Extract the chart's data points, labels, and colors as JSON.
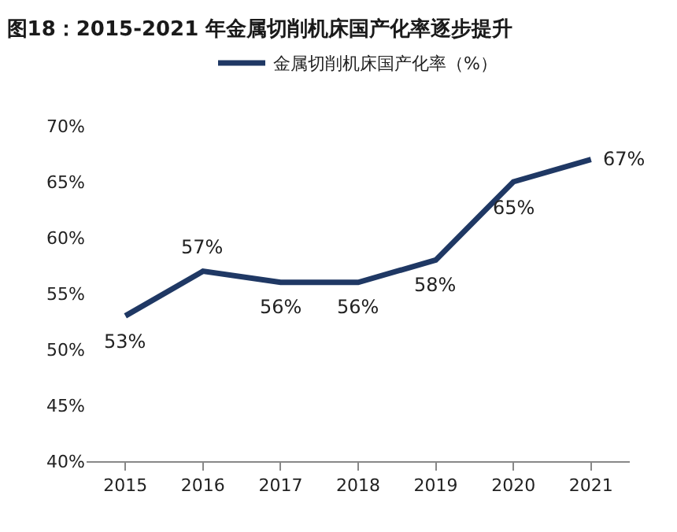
{
  "chart_data": {
    "type": "line",
    "title": "图18：2015-2021 年金属切削机床国产化率逐步提升",
    "categories": [
      "2015",
      "2016",
      "2017",
      "2018",
      "2019",
      "2020",
      "2021"
    ],
    "series": [
      {
        "name": "金属切削机床国产化率（%）",
        "color": "#1f3864",
        "values": [
          53,
          57,
          56,
          56,
          58,
          65,
          67
        ],
        "value_labels": [
          "53%",
          "57%",
          "56%",
          "56%",
          "58%",
          "65%",
          "67%"
        ]
      }
    ],
    "ylim": [
      40,
      70
    ],
    "yticks": [
      {
        "value": 40,
        "label": "40%"
      },
      {
        "value": 45,
        "label": "45%"
      },
      {
        "value": 50,
        "label": "50%"
      },
      {
        "value": 55,
        "label": "55%"
      },
      {
        "value": 60,
        "label": "60%"
      },
      {
        "value": 65,
        "label": "65%"
      },
      {
        "value": 70,
        "label": "70%"
      }
    ],
    "legend": "top",
    "marker": "none",
    "line_style": "solid"
  }
}
